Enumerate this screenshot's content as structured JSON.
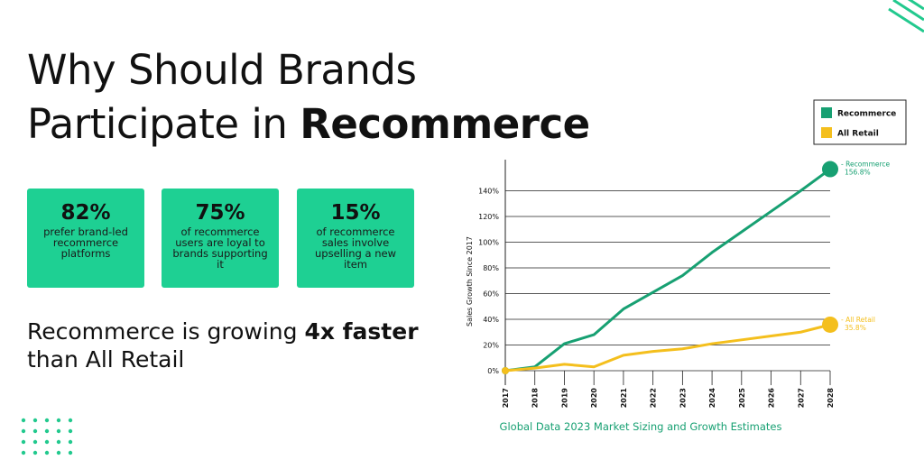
{
  "header": {
    "line1": "Why Should Brands",
    "line2": "Participate in",
    "line2_bold": "Recommerce"
  },
  "stats": [
    {
      "value": "82%",
      "text": "prefer brand-led recommerce platforms"
    },
    {
      "value": "75%",
      "text": "of recommerce users are loyal to brands supporting it"
    },
    {
      "value": "15%",
      "text": "of recommerce sales involve upselling a new item"
    }
  ],
  "tagline": {
    "prefix": "Recommerce is growing",
    "bold": "4x faster",
    "suffix": "than All Retail"
  },
  "chart_data": {
    "type": "line",
    "y_label": "Sales Growth Since 2017",
    "caption": "Global Data 2023 Market Sizing and Growth Estimates",
    "categories": [
      "2017",
      "2018",
      "2019",
      "2020",
      "2021",
      "2022",
      "2023",
      "2024",
      "2025",
      "2026",
      "2027",
      "2028"
    ],
    "ylim": [
      0,
      160
    ],
    "yticks": [
      {
        "value": 0,
        "label": "0%"
      },
      {
        "value": 20,
        "label": "20%"
      },
      {
        "value": 40,
        "label": "40%"
      },
      {
        "value": 60,
        "label": "60%"
      },
      {
        "value": 80,
        "label": "80%"
      },
      {
        "value": 100,
        "label": "100%"
      },
      {
        "value": 120,
        "label": "120%"
      },
      {
        "value": 140,
        "label": "140%"
      }
    ],
    "grid": true,
    "legend": "top-right",
    "series": [
      {
        "name": "Recommerce",
        "color": "#17a072",
        "end_label": "- Recommerce",
        "values": [
          0,
          3,
          21,
          28,
          48,
          61,
          74,
          92,
          108,
          124,
          140,
          156.8
        ],
        "value_labels": [
          null,
          null,
          null,
          null,
          null,
          null,
          null,
          null,
          null,
          null,
          null,
          "156.8%"
        ]
      },
      {
        "name": "All Retail",
        "color": "#f4bf1d",
        "end_label": "- All Retail",
        "values": [
          0,
          2,
          5,
          3,
          12,
          15,
          17,
          21,
          24,
          27,
          30,
          35.8
        ],
        "value_labels": [
          null,
          null,
          null,
          null,
          null,
          null,
          null,
          null,
          null,
          null,
          null,
          "35.8%"
        ]
      }
    ]
  }
}
